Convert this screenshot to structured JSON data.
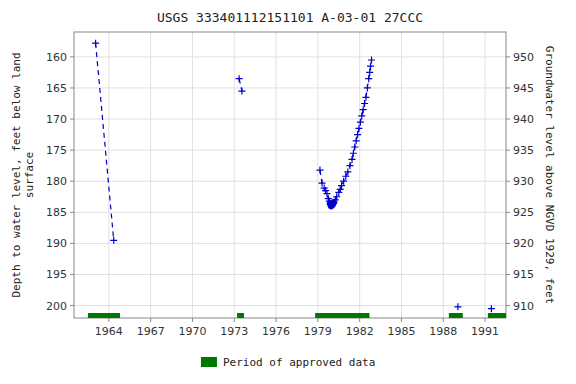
{
  "chart_data": {
    "type": "line",
    "title": "USGS 333401112151101 A-03-01 27CCC",
    "y_label": "Depth to water level, feet below land\nsurface",
    "y2_label": "Groundwater level above NGVD 1929, feet",
    "xlim": [
      1961.5,
      1992.5
    ],
    "ylim": [
      202,
      156
    ],
    "y2lim": [
      908,
      954
    ],
    "xticks": [
      1964,
      1967,
      1970,
      1973,
      1976,
      1979,
      1982,
      1985,
      1988,
      1991
    ],
    "yticks": [
      160,
      165,
      170,
      175,
      180,
      185,
      190,
      195,
      200
    ],
    "y2ticks": [
      950,
      945,
      940,
      935,
      930,
      925,
      920,
      915,
      910
    ],
    "grid": true,
    "legend": "bottom",
    "series": [
      {
        "color": "#0000cc",
        "marker": "plus",
        "line_style": "dashed",
        "x": [
          1963.05,
          1964.35
        ],
        "values": [
          157.8,
          189.5
        ]
      },
      {
        "color": "#0000cc",
        "marker": "plus",
        "line_style": "dashed",
        "x": [
          1973.35,
          1973.55
        ],
        "values": [
          163.5,
          165.5
        ]
      },
      {
        "color": "#0000cc",
        "marker": "plus",
        "line_style": "dashed",
        "x": [
          1979.15,
          1979.3,
          1979.45,
          1979.55,
          1979.65,
          1979.75,
          1979.82,
          1979.88,
          1979.95,
          1980.05,
          1980.15,
          1980.25,
          1980.35,
          1980.5,
          1980.6,
          1980.7,
          1980.85,
          1981.0,
          1981.15,
          1981.3,
          1981.45,
          1981.55,
          1981.65,
          1981.75,
          1981.85,
          1981.95,
          1982.05,
          1982.15,
          1982.25,
          1982.35,
          1982.45,
          1982.55,
          1982.65,
          1982.72,
          1982.78,
          1982.85
        ],
        "values": [
          178.2,
          180.3,
          181.1,
          181.5,
          182.0,
          182.8,
          183.2,
          183.6,
          184.0,
          183.8,
          183.4,
          183.0,
          182.5,
          181.8,
          181.3,
          180.7,
          180.0,
          179.2,
          178.5,
          177.5,
          176.5,
          175.5,
          174.5,
          173.5,
          172.5,
          171.5,
          170.5,
          169.5,
          168.5,
          167.5,
          166.5,
          165.0,
          163.5,
          162.5,
          161.5,
          160.5
        ]
      },
      {
        "color": "#0000cc",
        "marker": "circle",
        "line_style": "none",
        "x": [
          1979.88,
          1979.95,
          1980.05,
          1980.15
        ],
        "values": [
          183.6,
          184.0,
          183.8,
          183.4
        ]
      },
      {
        "color": "#0000cc",
        "marker": "plus",
        "line_style": "none",
        "x": [
          1989.05
        ],
        "values": [
          200.2
        ]
      },
      {
        "color": "#0000cc",
        "marker": "plus",
        "line_style": "none",
        "x": [
          1991.45
        ],
        "values": [
          200.5
        ]
      }
    ],
    "spans": {
      "name": "Period of approved data",
      "color": "#007700",
      "starts": [
        1962.5,
        1973.2,
        1978.8,
        1988.4,
        1991.2
      ],
      "ends": [
        1964.8,
        1973.7,
        1982.7,
        1989.4,
        1992.5
      ]
    }
  }
}
